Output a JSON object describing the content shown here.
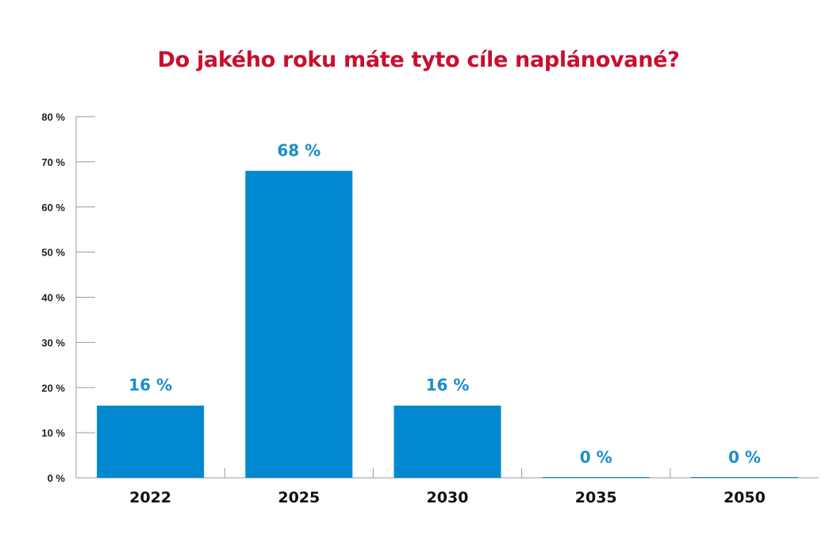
{
  "chart_data": {
    "type": "bar",
    "title": "Do jakého roku máte tyto cíle naplánované?",
    "categories": [
      "2022",
      "2025",
      "2030",
      "2035",
      "2050"
    ],
    "values": [
      16,
      68,
      16,
      0,
      0
    ],
    "data_labels": [
      "16 %",
      "68 %",
      "16 %",
      "0 %",
      "0 %"
    ],
    "y_ticks": [
      {
        "value": 0,
        "label": "0 %"
      },
      {
        "value": 10,
        "label": "10 %"
      },
      {
        "value": 20,
        "label": "20 %"
      },
      {
        "value": 30,
        "label": "30 %"
      },
      {
        "value": 40,
        "label": "40 %"
      },
      {
        "value": 50,
        "label": "50 %"
      },
      {
        "value": 60,
        "label": "60 %"
      },
      {
        "value": 70,
        "label": "70 %"
      },
      {
        "value": 80,
        "label": "80 %"
      }
    ],
    "ylim": [
      0,
      80
    ],
    "xlabel": "",
    "ylabel": "",
    "grid": false,
    "colors": {
      "bar": "#0288d1",
      "label": "#1a8fc9",
      "title": "#c8102e",
      "axis": "#999999"
    }
  }
}
